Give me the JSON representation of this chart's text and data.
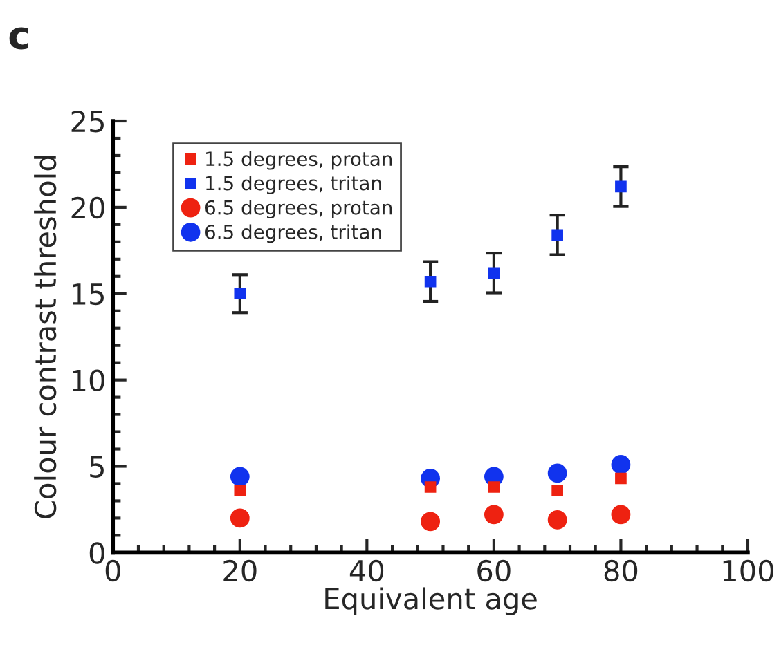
{
  "chart_data": {
    "type": "scatter",
    "xlabel": "Equivalent age",
    "ylabel": "Colour contrast threshold",
    "annotations": [
      "c"
    ],
    "x": [
      20,
      50,
      60,
      70,
      80
    ],
    "series": [
      {
        "name": "1.5 degrees, protan",
        "color": "#ee2211",
        "marker": "square",
        "values": [
          3.6,
          3.8,
          3.8,
          3.6,
          4.3
        ]
      },
      {
        "name": "1.5 degrees, tritan",
        "color": "#1133ee",
        "marker": "square",
        "values": [
          15.0,
          15.7,
          16.2,
          18.4,
          21.2
        ],
        "errors": [
          1.1,
          1.15,
          1.15,
          1.15,
          1.15
        ]
      },
      {
        "name": "6.5 degrees, protan",
        "color": "#ee2211",
        "marker": "circle",
        "values": [
          2.0,
          1.8,
          2.2,
          1.9,
          2.2
        ]
      },
      {
        "name": "6.5 degrees, tritan",
        "color": "#1133ee",
        "marker": "circle",
        "values": [
          4.4,
          4.3,
          4.4,
          4.6,
          5.1
        ]
      }
    ],
    "xlim": [
      0,
      100
    ],
    "xticks": [
      0,
      20,
      40,
      60,
      80,
      100
    ],
    "ylim": [
      0,
      25
    ],
    "yticks": [
      0,
      5,
      10,
      15,
      20,
      25
    ],
    "grid": false,
    "legend": "top left"
  }
}
